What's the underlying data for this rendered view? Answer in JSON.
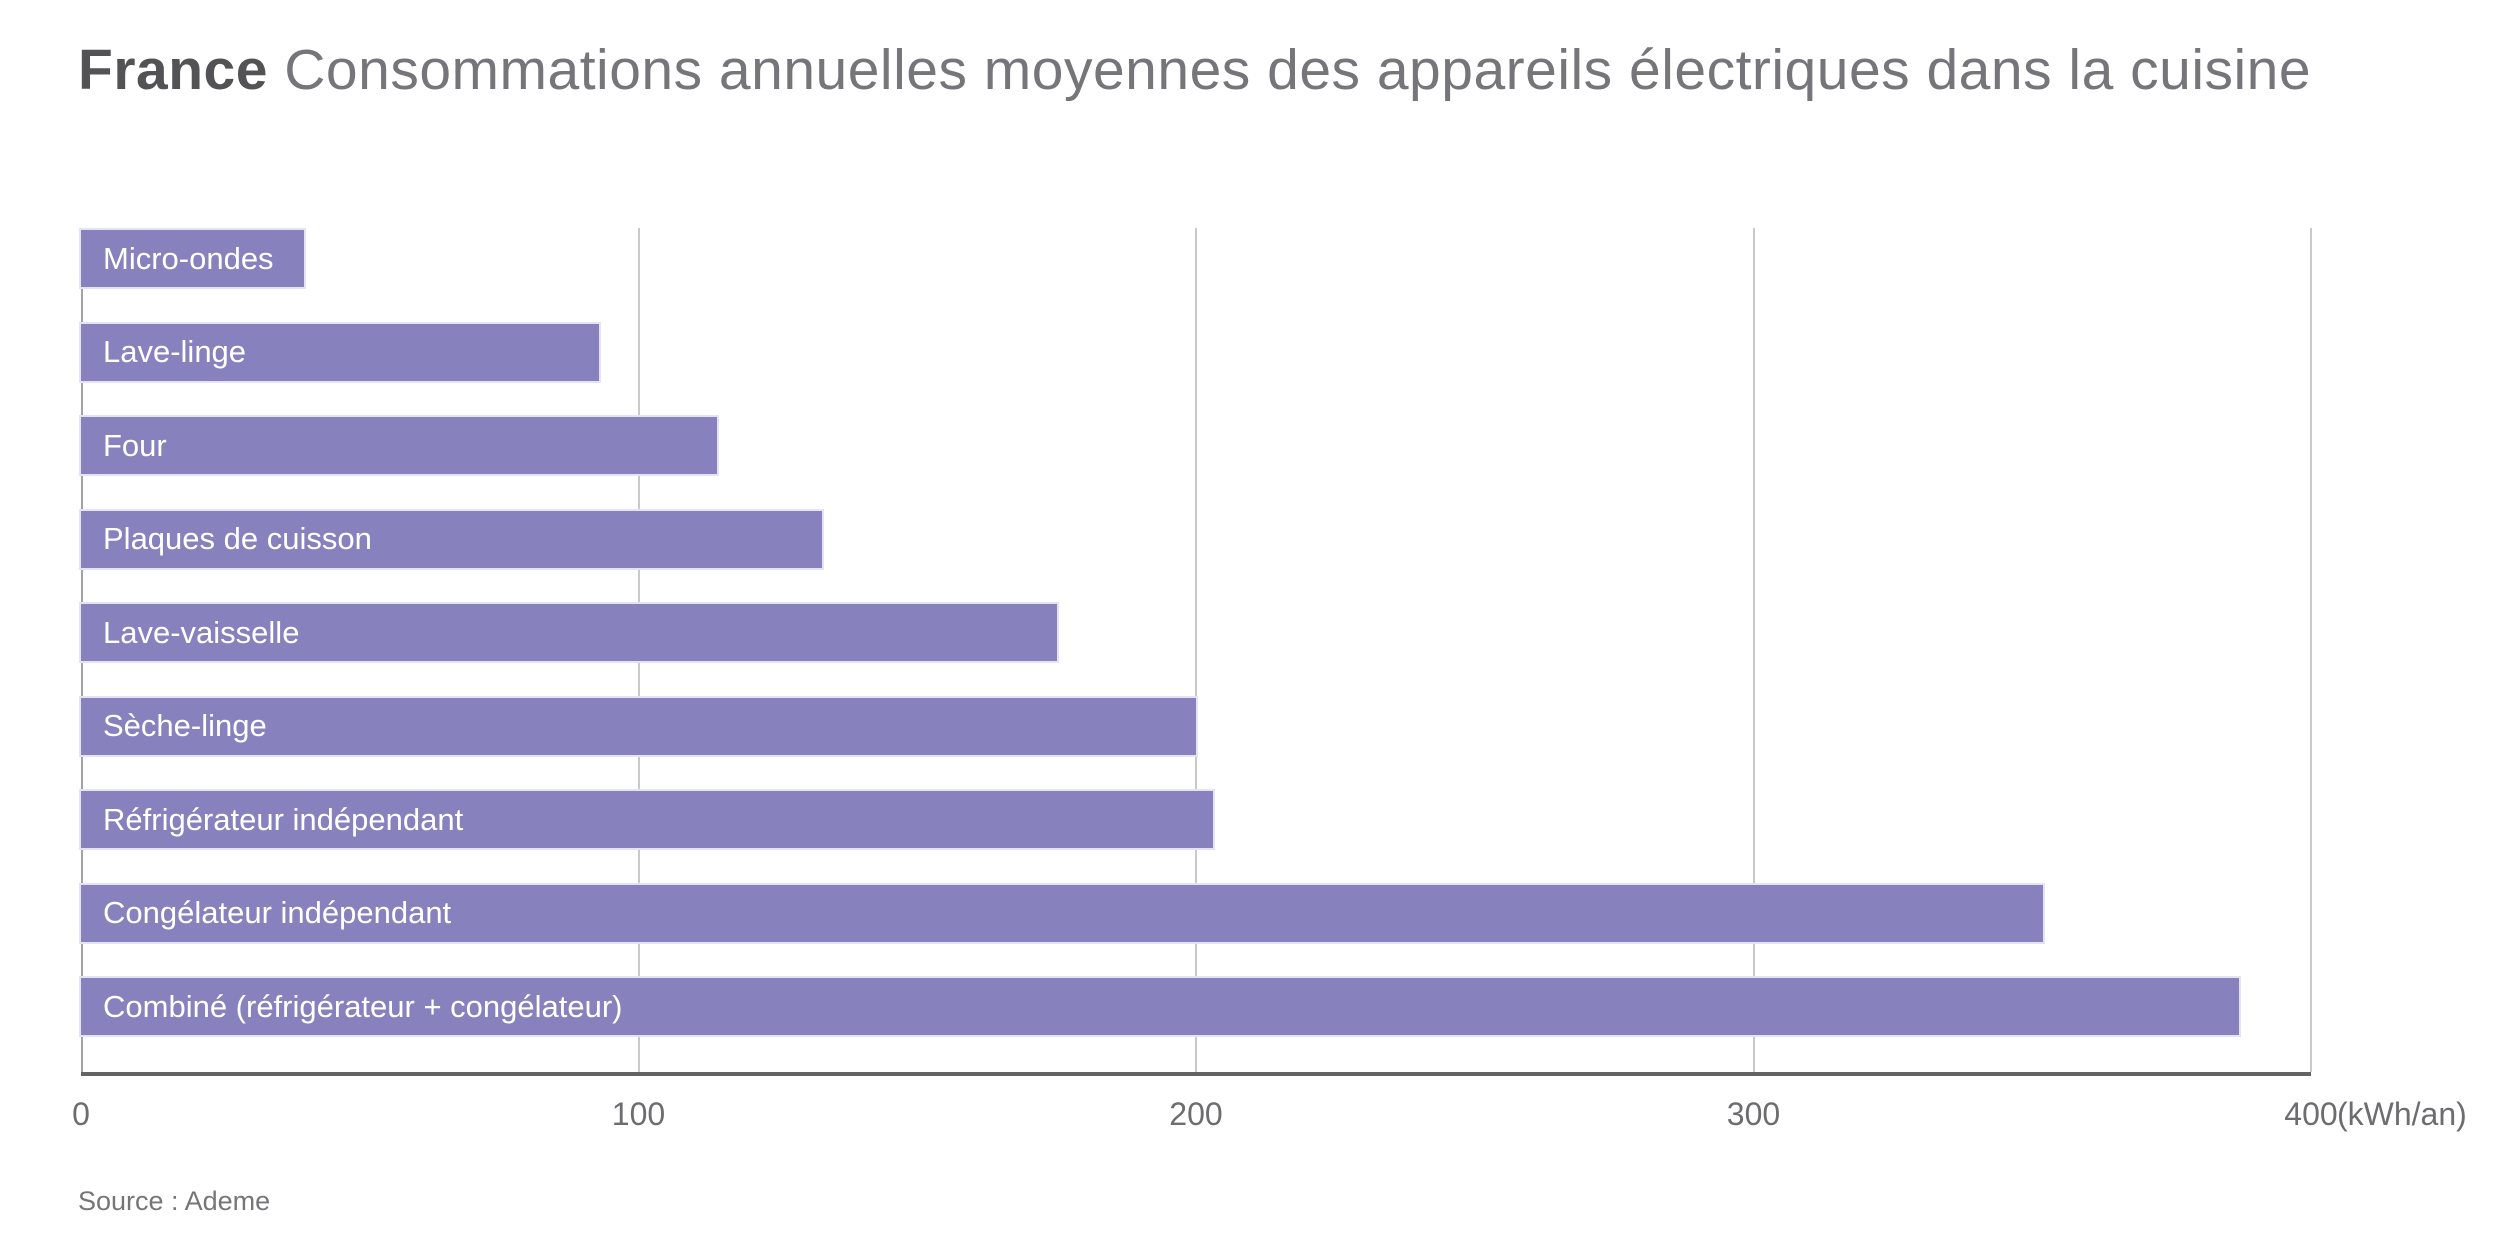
{
  "title": {
    "prefix": "France",
    "text": " Consommations annuelles moyennes des appareils électriques dans la cuisine"
  },
  "source": "Source : Ademe",
  "chart_data": {
    "type": "bar",
    "orientation": "horizontal",
    "title": "France Consommations annuelles moyennes des appareils électriques dans la cuisine",
    "categories": [
      "Micro-ondes",
      "Lave-linge",
      "Four",
      "Plaques de cuisson",
      "Lave-vaisselle",
      "Sèche-linge",
      "Réfrigérateur indépendant",
      "Congélateur indépendant",
      "Combiné (réfrigérateur + congélateur)"
    ],
    "values": [
      40,
      93,
      114,
      133,
      175,
      200,
      203,
      352,
      387
    ],
    "unit": "kWh/an",
    "xlabel": "(kWh/an)",
    "ylabel": "",
    "xlim": [
      0,
      400
    ],
    "x_ticks": [
      0,
      100,
      200,
      300,
      400
    ],
    "grid": true,
    "legend": "none",
    "bar_color": "#8781BD",
    "bar_border_color": "#E4E2F3",
    "source": "Source : Ademe"
  }
}
